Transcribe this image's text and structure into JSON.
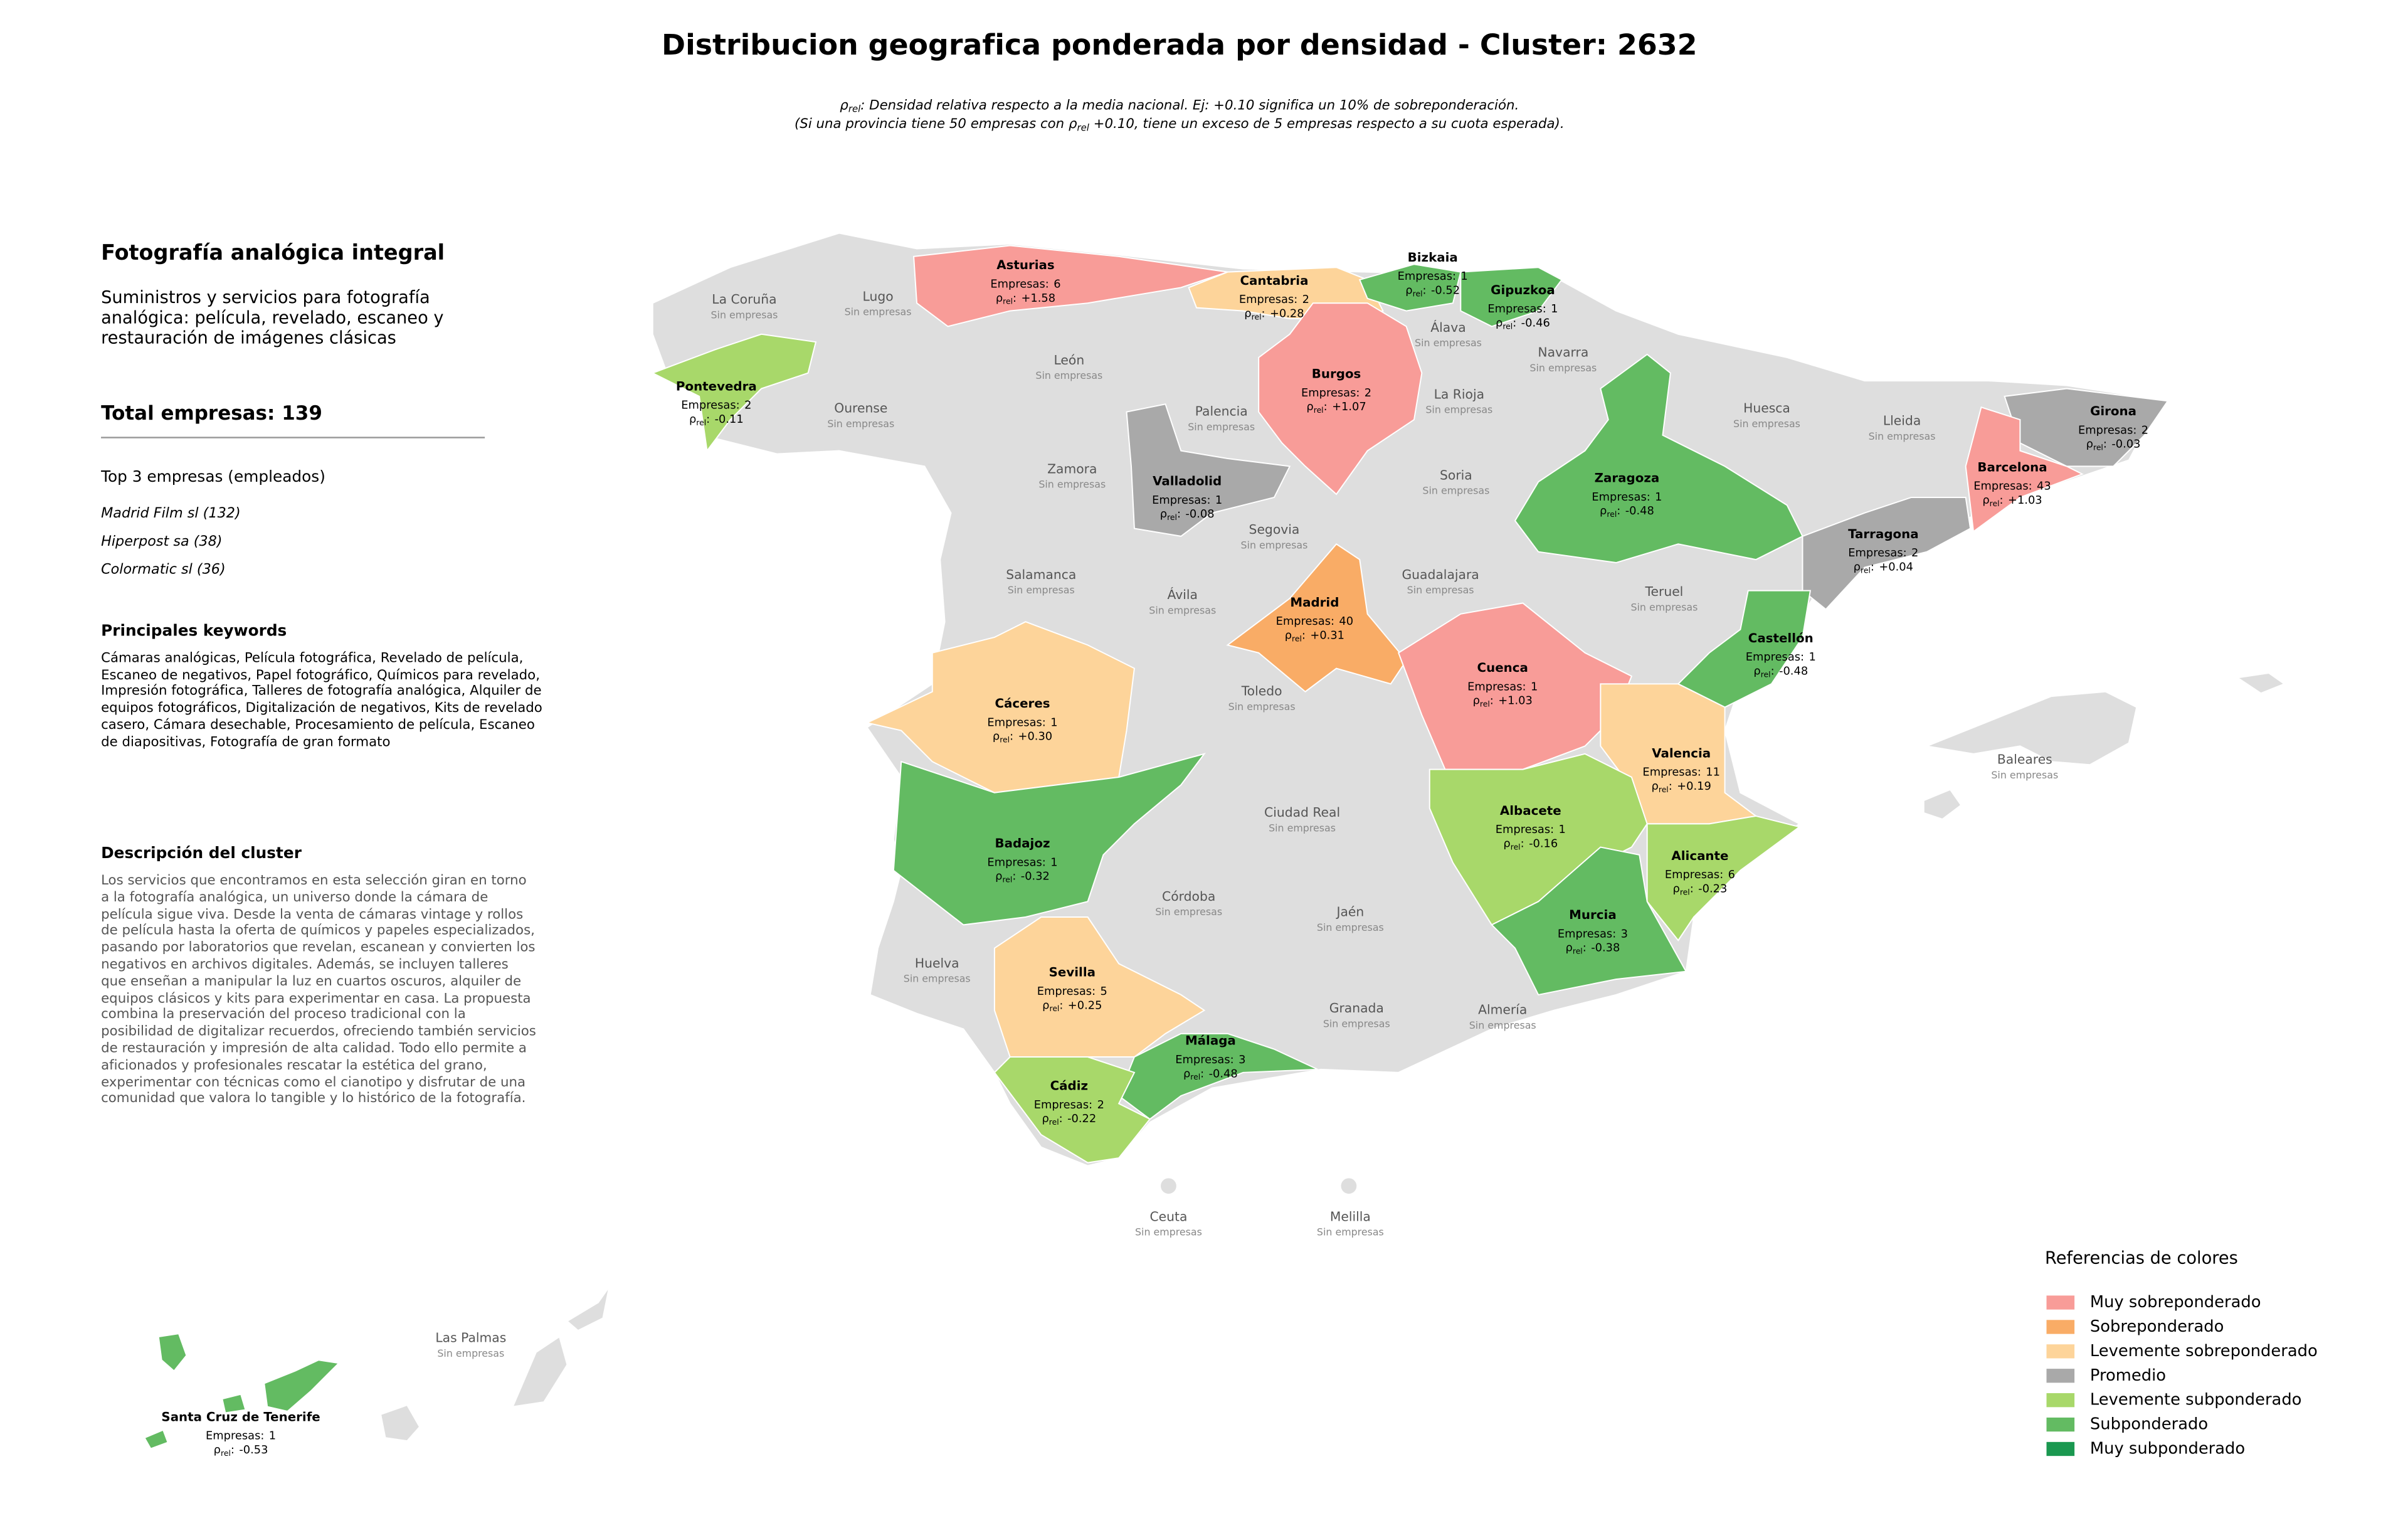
{
  "title": "Distribucion geografica ponderada por densidad - Cluster: 2632",
  "subtitle": [
    [
      "ρ",
      "rel",
      ": Densidad relativa respecto a la media nacional. Ej: +0.10 significa un 10% de sobreponderación."
    ],
    [
      "(Si una provincia tiene 50 empresas con ρ",
      "rel",
      " +0.10, tiene un exceso de 5 empresas respecto a su cuota esperada)."
    ]
  ],
  "panel": {
    "title": "Fotografía analógica integral",
    "summary": "Suministros y servicios para fotografía analógica: película, revelado, escaneo y restauración de imágenes clásicas",
    "total_label": "Total empresas:",
    "total": 139,
    "top_heading": "Top 3 empresas (empleados)",
    "top": [
      "Madrid Film sl (132)",
      "Hiperpost sa (38)",
      "Colormatic sl (36)"
    ],
    "keywords_heading": "Principales keywords",
    "keywords": "Cámaras analógicas, Película fotográfica, Revelado de película, Escaneo de negativos, Papel fotográfico, Químicos para revelado, Impresión fotográfica, Talleres de fotografía analógica, Alquiler de equipos fotográficos, Digitalización de negativos, Kits de revelado casero, Cámara desechable, Procesamiento de película, Escaneo de diapositivas, Fotografía de gran formato",
    "description_heading": "Descripción del cluster",
    "description": "Los servicios que encontramos en esta selección giran en torno a la fotografía analógica, un universo donde la cámara de película sigue viva. Desde la venta de cámaras vintage y rollos de película hasta la oferta de químicos y papeles especializados, pasando por laboratorios que revelan, escanean y convierten los negativos en archivos digitales. Además, se incluyen talleres que enseñan a manipular la luz en cuartos oscuros, alquiler de equipos clásicos y kits para experimentar en casa. La propuesta combina la preservación del proceso tradicional con la posibilidad de digitalizar recuerdos, ofreciendo también servicios de restauración y impresión de alta calidad. Todo ello permite a aficionados y profesionales rescatar la estética del grano, experimentar con técnicas como el cianotipo y disfrutar de una comunidad que valora lo tangible y lo histórico de la fotografía."
  },
  "map": {
    "count_label": "Empresas:",
    "rho_label": [
      "ρ",
      "rel",
      ":"
    ],
    "no_data_label": "Sin empresas",
    "no_data_color": "#dedede",
    "provinces": [
      {
        "name": "Asturias",
        "companies": 6,
        "rho": 1.58,
        "rho_label": "+1.58",
        "color": "#f89c98"
      },
      {
        "name": "Cantabria",
        "companies": 2,
        "rho": 0.28,
        "rho_label": "+0.28",
        "color": "#fdd49a"
      },
      {
        "name": "Bizkaia",
        "companies": 1,
        "rho": -0.52,
        "rho_label": "-0.52",
        "color": "#63bb62"
      },
      {
        "name": "Gipuzkoa",
        "companies": 1,
        "rho": -0.46,
        "rho_label": "-0.46",
        "color": "#63bb62"
      },
      {
        "name": "Burgos",
        "companies": 2,
        "rho": 1.07,
        "rho_label": "+1.07",
        "color": "#f89c98"
      },
      {
        "name": "Pontevedra",
        "companies": 2,
        "rho": -0.11,
        "rho_label": "-0.11",
        "color": "#a8d86a"
      },
      {
        "name": "Valladolid",
        "companies": 1,
        "rho": -0.08,
        "rho_label": "-0.08",
        "color": "#a9a9a9"
      },
      {
        "name": "Zaragoza",
        "companies": 1,
        "rho": -0.48,
        "rho_label": "-0.48",
        "color": "#63bb62"
      },
      {
        "name": "Girona",
        "companies": 2,
        "rho": -0.03,
        "rho_label": "-0.03",
        "color": "#a9a9a9"
      },
      {
        "name": "Barcelona",
        "companies": 43,
        "rho": 1.03,
        "rho_label": "+1.03",
        "color": "#f89c98"
      },
      {
        "name": "Tarragona",
        "companies": 2,
        "rho": 0.04,
        "rho_label": "+0.04",
        "color": "#a9a9a9"
      },
      {
        "name": "Madrid",
        "companies": 40,
        "rho": 0.31,
        "rho_label": "+0.31",
        "color": "#f9ac66"
      },
      {
        "name": "Castellón",
        "companies": 1,
        "rho": -0.48,
        "rho_label": "-0.48",
        "color": "#63bb62"
      },
      {
        "name": "Cuenca",
        "companies": 1,
        "rho": 1.03,
        "rho_label": "+1.03",
        "color": "#f89c98"
      },
      {
        "name": "Cáceres",
        "companies": 1,
        "rho": 0.3,
        "rho_label": "+0.30",
        "color": "#fdd49a"
      },
      {
        "name": "Valencia",
        "companies": 11,
        "rho": 0.19,
        "rho_label": "+0.19",
        "color": "#fdd49a"
      },
      {
        "name": "Albacete",
        "companies": 1,
        "rho": -0.16,
        "rho_label": "-0.16",
        "color": "#a8d86a"
      },
      {
        "name": "Alicante",
        "companies": 6,
        "rho": -0.23,
        "rho_label": "-0.23",
        "color": "#a8d86a"
      },
      {
        "name": "Badajoz",
        "companies": 1,
        "rho": -0.32,
        "rho_label": "-0.32",
        "color": "#63bb62"
      },
      {
        "name": "Murcia",
        "companies": 3,
        "rho": -0.38,
        "rho_label": "-0.38",
        "color": "#63bb62"
      },
      {
        "name": "Sevilla",
        "companies": 5,
        "rho": 0.25,
        "rho_label": "+0.25",
        "color": "#fdd49a"
      },
      {
        "name": "Málaga",
        "companies": 3,
        "rho": -0.48,
        "rho_label": "-0.48",
        "color": "#63bb62"
      },
      {
        "name": "Cádiz",
        "companies": 2,
        "rho": -0.22,
        "rho_label": "-0.22",
        "color": "#a8d86a"
      },
      {
        "name": "Santa Cruz de Tenerife",
        "companies": 1,
        "rho": -0.53,
        "rho_label": "-0.53",
        "color": "#63bb62"
      }
    ],
    "empty_provinces": [
      "La Coruña",
      "Lugo",
      "León",
      "Ourense",
      "Palencia",
      "Zamora",
      "Álava",
      "Navarra",
      "La Rioja",
      "Huesca",
      "Lleida",
      "Soria",
      "Segovia",
      "Salamanca",
      "Ávila",
      "Guadalajara",
      "Teruel",
      "Toledo",
      "Ciudad Real",
      "Córdoba",
      "Jaén",
      "Huelva",
      "Granada",
      "Almería",
      "Baleares",
      "Ceuta",
      "Melilla",
      "Las Palmas"
    ]
  },
  "legend": {
    "title": "Referencias de colores",
    "items": [
      {
        "label": "Muy sobreponderado",
        "color": "#f89c98"
      },
      {
        "label": "Sobreponderado",
        "color": "#f9ac66"
      },
      {
        "label": "Levemente sobreponderado",
        "color": "#fdd49a"
      },
      {
        "label": "Promedio",
        "color": "#a9a9a9"
      },
      {
        "label": "Levemente subponderado",
        "color": "#a8d86a"
      },
      {
        "label": "Subponderado",
        "color": "#63bb62"
      },
      {
        "label": "Muy subponderado",
        "color": "#1a9850"
      }
    ]
  }
}
